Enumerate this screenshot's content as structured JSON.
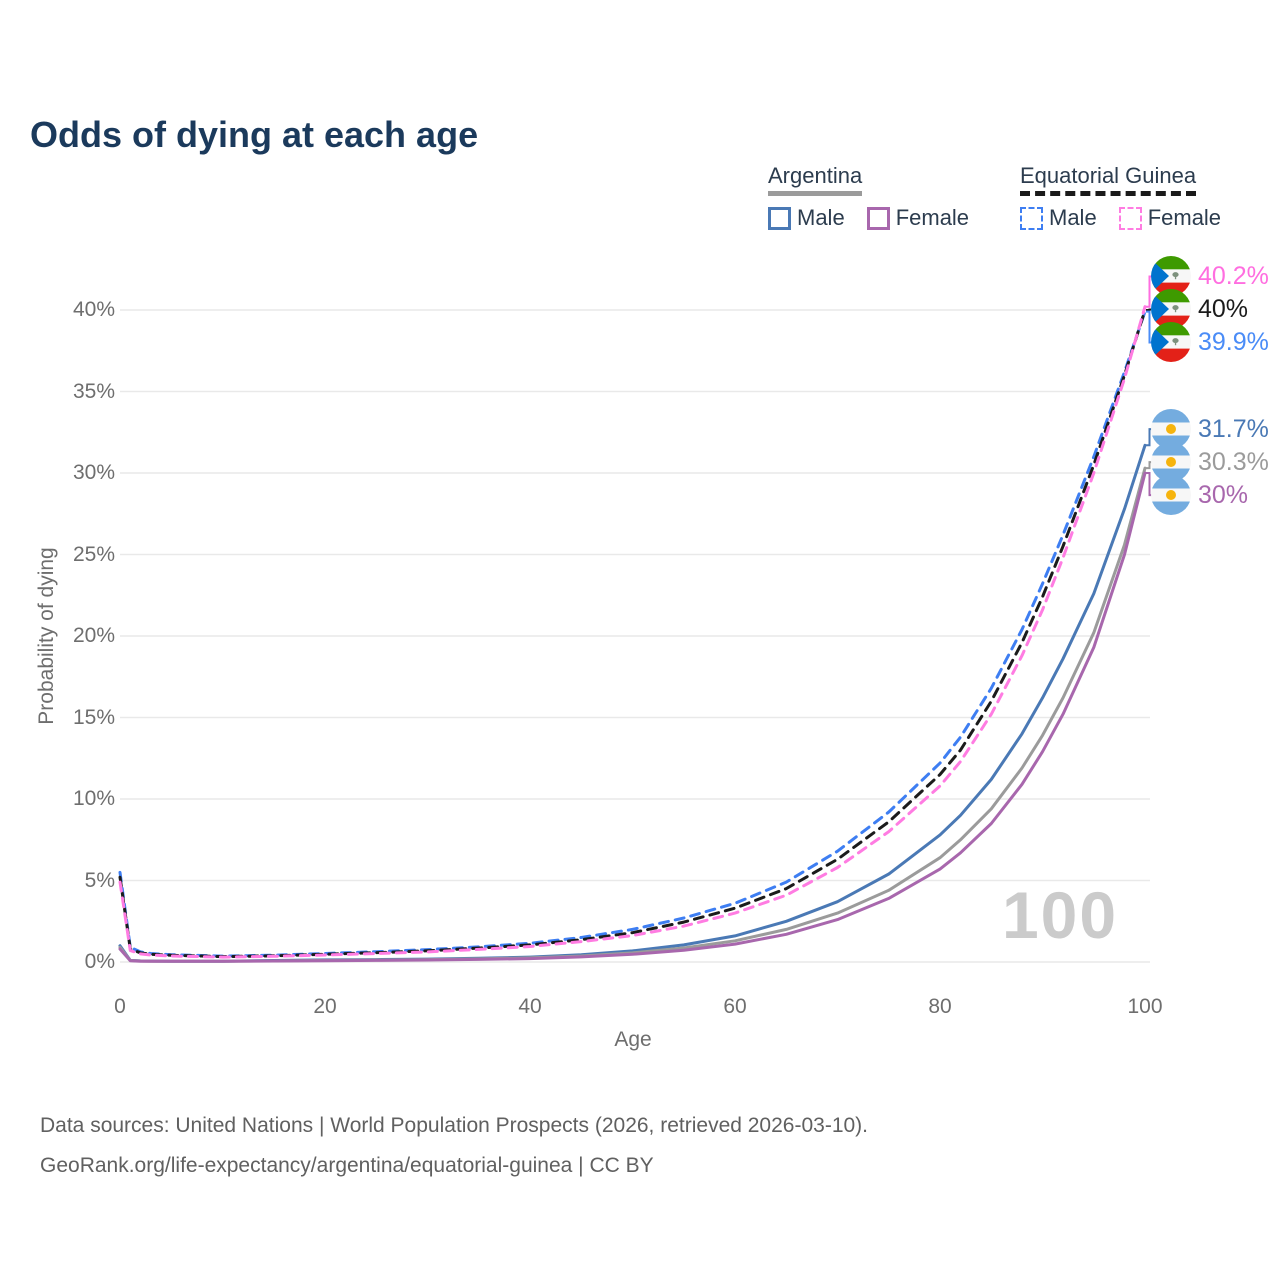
{
  "title": "Odds of dying at each age",
  "watermark": "100",
  "legend": {
    "groups": [
      {
        "name": "Argentina",
        "underline": "solid",
        "underline_color": "#9b9b9b",
        "entries": [
          {
            "label": "Male",
            "color": "#4a79b5",
            "dash": false
          },
          {
            "label": "Female",
            "color": "#a867ad",
            "dash": false
          }
        ]
      },
      {
        "name": "Equatorial Guinea",
        "underline": "dashed",
        "underline_color": "#1a1a1a",
        "entries": [
          {
            "label": "Male",
            "color": "#3e7ef2",
            "dash": true
          },
          {
            "label": "Female",
            "color": "#ff7ce2",
            "dash": true
          }
        ]
      }
    ]
  },
  "end_labels": [
    {
      "text": "40.2%",
      "series_id": "gq-female",
      "flag": "equatorial-guinea",
      "color": "#ff6ee0"
    },
    {
      "text": "40%",
      "series_id": "gq-both",
      "flag": "equatorial-guinea",
      "color": "#1b1b1b"
    },
    {
      "text": "39.9%",
      "series_id": "gq-male",
      "flag": "equatorial-guinea",
      "color": "#4a8cf7"
    },
    {
      "text": "31.7%",
      "series_id": "ar-male",
      "flag": "argentina",
      "color": "#4a79b5"
    },
    {
      "text": "30.3%",
      "series_id": "ar-both",
      "flag": "argentina",
      "color": "#9b9b9b"
    },
    {
      "text": "30%",
      "series_id": "ar-female",
      "flag": "argentina",
      "color": "#a867ad"
    }
  ],
  "footer": {
    "line1": "Data sources: United Nations | World Population Prospects (2026, retrieved 2026-03-10).",
    "line2": "GeoRank.org/life-expectancy/argentina/equatorial-guinea | CC BY"
  },
  "chart_data": {
    "type": "line",
    "title": "Odds of dying at each age",
    "xlabel": "Age",
    "ylabel": "Probability of dying",
    "xlim": [
      0,
      100
    ],
    "ylim_percent": [
      0,
      42
    ],
    "grid": "horizontal",
    "legend_position": "top-right",
    "age_cursor": "100",
    "x_ticks": [
      0,
      20,
      40,
      60,
      80,
      100
    ],
    "x_tick_labels": [
      "0",
      "20",
      "40",
      "60",
      "80",
      "100"
    ],
    "y_ticks_percent": [
      0,
      5,
      10,
      15,
      20,
      25,
      30,
      35,
      40
    ],
    "y_tick_labels": [
      "0%",
      "5%",
      "10%",
      "15%",
      "20%",
      "25%",
      "30%",
      "35%",
      "40%"
    ],
    "ages": [
      0,
      1,
      2,
      3,
      5,
      10,
      15,
      20,
      25,
      30,
      35,
      40,
      45,
      50,
      55,
      60,
      65,
      70,
      75,
      80,
      82,
      85,
      88,
      90,
      92,
      95,
      98,
      100
    ],
    "series": [
      {
        "id": "ar-male",
        "name": "Argentina Male",
        "country": "Argentina",
        "sex": "Male",
        "style": "solid",
        "color": "#4a79b5",
        "end_label": "31.7%",
        "values_percent": [
          1.0,
          0.1,
          0.07,
          0.06,
          0.05,
          0.05,
          0.09,
          0.13,
          0.15,
          0.18,
          0.23,
          0.3,
          0.44,
          0.68,
          1.05,
          1.6,
          2.5,
          3.7,
          5.4,
          7.8,
          9.0,
          11.2,
          14.0,
          16.2,
          18.6,
          22.6,
          27.8,
          31.7
        ]
      },
      {
        "id": "ar-both",
        "name": "Argentina Both sexes",
        "country": "Argentina",
        "sex": "Both",
        "style": "solid",
        "color": "#9b9b9b",
        "end_label": "30.3%",
        "values_percent": [
          0.9,
          0.09,
          0.06,
          0.05,
          0.04,
          0.04,
          0.07,
          0.1,
          0.12,
          0.15,
          0.19,
          0.25,
          0.37,
          0.56,
          0.86,
          1.3,
          2.0,
          3.0,
          4.4,
          6.4,
          7.5,
          9.4,
          11.9,
          13.9,
          16.2,
          20.2,
          25.6,
          30.3
        ]
      },
      {
        "id": "ar-female",
        "name": "Argentina Female",
        "country": "Argentina",
        "sex": "Female",
        "style": "solid",
        "color": "#a867ad",
        "end_label": "30%",
        "values_percent": [
          0.8,
          0.08,
          0.05,
          0.045,
          0.04,
          0.04,
          0.06,
          0.08,
          0.1,
          0.12,
          0.16,
          0.21,
          0.31,
          0.47,
          0.72,
          1.1,
          1.7,
          2.6,
          3.9,
          5.7,
          6.7,
          8.5,
          10.9,
          12.9,
          15.2,
          19.3,
          25.0,
          30.0
        ]
      },
      {
        "id": "gq-male",
        "name": "Equatorial Guinea Male",
        "country": "Equatorial Guinea",
        "sex": "Male",
        "style": "dashed",
        "color": "#3e7ef2",
        "end_label": "39.9%",
        "values_percent": [
          5.5,
          0.9,
          0.62,
          0.52,
          0.45,
          0.36,
          0.42,
          0.52,
          0.63,
          0.76,
          0.93,
          1.15,
          1.5,
          2.0,
          2.7,
          3.6,
          4.9,
          6.8,
          9.2,
          12.2,
          13.8,
          16.8,
          20.4,
          23.2,
          26.2,
          31.0,
          36.2,
          39.9
        ]
      },
      {
        "id": "gq-both",
        "name": "Equatorial Guinea Both sexes",
        "country": "Equatorial Guinea",
        "sex": "Both",
        "style": "dashed",
        "color": "#1b1b1b",
        "end_label": "40%",
        "values_percent": [
          5.2,
          0.8,
          0.56,
          0.47,
          0.41,
          0.33,
          0.38,
          0.47,
          0.57,
          0.69,
          0.85,
          1.05,
          1.37,
          1.8,
          2.45,
          3.3,
          4.5,
          6.3,
          8.6,
          11.5,
          13.0,
          16.0,
          19.6,
          22.4,
          25.5,
          30.5,
          36.0,
          40.0
        ]
      },
      {
        "id": "gq-female",
        "name": "Equatorial Guinea Female",
        "country": "Equatorial Guinea",
        "sex": "Female",
        "style": "dashed",
        "color": "#ff7ce2",
        "end_label": "40.2%",
        "values_percent": [
          4.9,
          0.7,
          0.5,
          0.43,
          0.37,
          0.3,
          0.35,
          0.43,
          0.52,
          0.62,
          0.77,
          0.95,
          1.25,
          1.62,
          2.2,
          3.0,
          4.1,
          5.8,
          8.0,
          10.8,
          12.3,
          15.2,
          18.8,
          21.6,
          24.8,
          30.0,
          35.8,
          40.2
        ]
      }
    ]
  }
}
